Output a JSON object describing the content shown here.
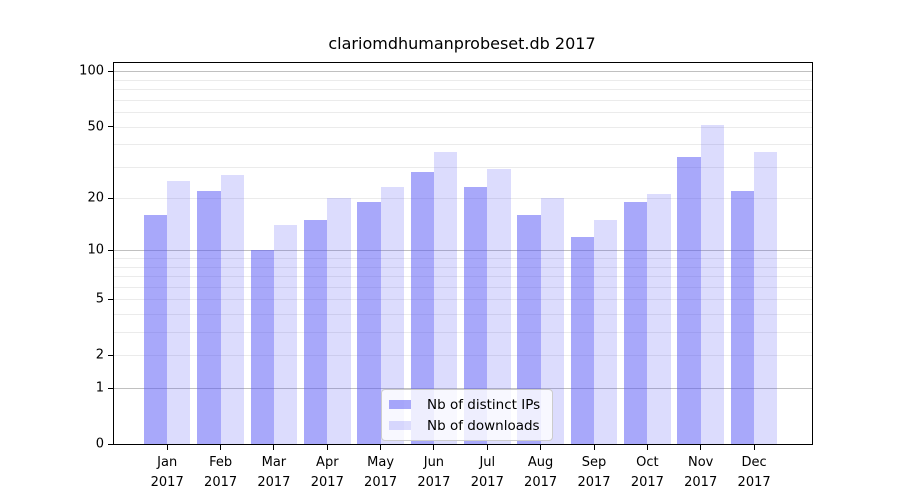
{
  "title": "clariomdhumanprobeset.db 2017",
  "colors": {
    "bar_base": "#5252f5",
    "series_dark": "rgba(82,82,245,0.5)",
    "series_light": "rgba(82,82,245,0.2)",
    "grid_major": "#c0c0c0",
    "grid_minor": "#ebebeb",
    "spine": "#000000"
  },
  "chart_data": {
    "type": "bar",
    "title": "clariomdhumanprobeset.db 2017",
    "xlabel": "",
    "ylabel": "",
    "year_label": "2017",
    "categories": [
      "Jan",
      "Feb",
      "Mar",
      "Apr",
      "May",
      "Jun",
      "Jul",
      "Aug",
      "Sep",
      "Oct",
      "Nov",
      "Dec"
    ],
    "series": [
      {
        "name": "Nb of distinct IPs",
        "color": "rgba(82,82,245,0.5)",
        "values": [
          16,
          22,
          10,
          15,
          19,
          28,
          23,
          16,
          12,
          19,
          34,
          22
        ]
      },
      {
        "name": "Nb of downloads",
        "color": "rgba(82,82,245,0.2)",
        "values": [
          25,
          27,
          14,
          20,
          23,
          36,
          29,
          20,
          15,
          21,
          51,
          36
        ]
      }
    ],
    "yticks": [
      0,
      1,
      2,
      5,
      10,
      20,
      50,
      100
    ],
    "ylim": [
      0,
      111
    ],
    "yscale": "log1p",
    "grid": "on",
    "gridlines_major": [
      1,
      10,
      100
    ],
    "gridlines_minor": [
      2,
      3,
      4,
      5,
      6,
      7,
      8,
      9,
      20,
      30,
      40,
      50,
      60,
      70,
      80,
      90
    ],
    "legend_position": "lower center"
  }
}
